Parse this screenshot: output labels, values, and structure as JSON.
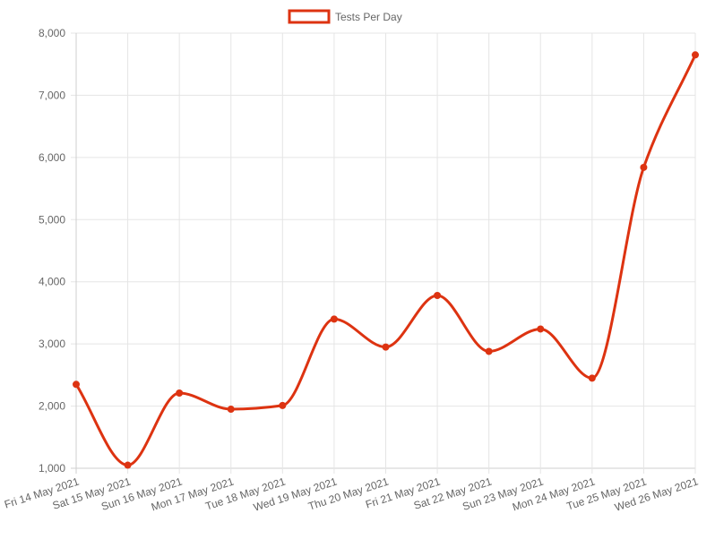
{
  "chart_data": {
    "type": "line",
    "title": "",
    "xlabel": "",
    "ylabel": "",
    "categories": [
      "Fri 14 May 2021",
      "Sat 15 May 2021",
      "Sun 16 May 2021",
      "Mon 17 May 2021",
      "Tue 18 May 2021",
      "Wed 19 May 2021",
      "Thu 20 May 2021",
      "Fri 21 May 2021",
      "Sat 22 May 2021",
      "Sun 23 May 2021",
      "Mon 24 May 2021",
      "Tue 25 May 2021",
      "Wed 26 May 2021"
    ],
    "series": [
      {
        "name": "Tests Per Day",
        "color": "#dd3311",
        "values": [
          2350,
          1050,
          2210,
          1950,
          2010,
          3400,
          2950,
          3780,
          2880,
          3240,
          2450,
          5840,
          7650
        ]
      }
    ],
    "ylim": [
      1000,
      8000
    ],
    "yticks": [
      1000,
      2000,
      3000,
      4000,
      5000,
      6000,
      7000,
      8000
    ],
    "ytick_labels": [
      "1,000",
      "2,000",
      "3,000",
      "4,000",
      "5,000",
      "6,000",
      "7,000",
      "8,000"
    ],
    "grid": true,
    "legend_position": "top-center",
    "curve": "smooth"
  }
}
